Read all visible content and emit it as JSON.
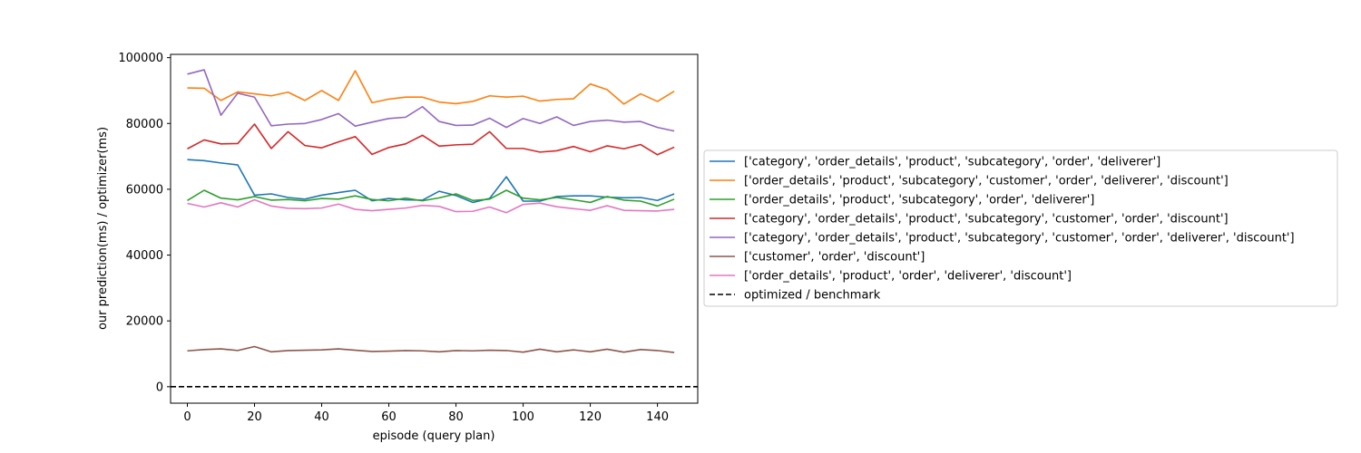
{
  "chart_data": {
    "type": "line",
    "title": "",
    "xlabel": "episode (query plan)",
    "ylabel": "our prediction(ms) / optimizer(ms)",
    "xlim": [
      -5,
      152
    ],
    "ylim": [
      -5000,
      101000
    ],
    "xticks": [
      "0",
      "20",
      "40",
      "60",
      "80",
      "100",
      "120",
      "140"
    ],
    "yticks": [
      "0",
      "20000",
      "40000",
      "60000",
      "80000",
      "100000"
    ],
    "grid": false,
    "legend_position": "right",
    "x": [
      0,
      5,
      10,
      15,
      20,
      25,
      30,
      35,
      40,
      45,
      50,
      55,
      60,
      65,
      70,
      75,
      80,
      85,
      90,
      95,
      100,
      105,
      110,
      115,
      120,
      125,
      130,
      135,
      140,
      145
    ],
    "series": [
      {
        "name": "['category', 'order_details', 'product', 'subcategory', 'order', 'deliverer']",
        "color": "#1f77b4",
        "values": [
          69000,
          68700,
          68000,
          67400,
          58200,
          58600,
          57500,
          57000,
          58200,
          59000,
          59700,
          56500,
          57200,
          56800,
          56700,
          59400,
          58100,
          56000,
          57200,
          63800,
          56400,
          56400,
          57800,
          58000,
          58000,
          57600,
          57400,
          57500,
          56600,
          58600
        ]
      },
      {
        "name": "['order_details', 'product', 'subcategory', 'customer', 'order', 'deliverer', 'discount']",
        "color": "#ff7f0e",
        "values": [
          90800,
          90700,
          87000,
          89600,
          89000,
          88400,
          89500,
          87000,
          90000,
          87000,
          96000,
          86300,
          87400,
          88000,
          88000,
          86500,
          86000,
          86700,
          88400,
          88000,
          88300,
          86800,
          87300,
          87500,
          92000,
          90300,
          85900,
          89000,
          86700,
          89800
        ]
      },
      {
        "name": "['order_details', 'product', 'subcategory', 'order', 'deliverer']",
        "color": "#2ca02c",
        "values": [
          56600,
          59700,
          57300,
          56800,
          57800,
          56700,
          56900,
          56500,
          57200,
          57000,
          58000,
          56900,
          56500,
          57300,
          56500,
          57400,
          58600,
          56600,
          57000,
          59700,
          57300,
          56800,
          57500,
          56800,
          56000,
          57800,
          56700,
          56400,
          54900,
          57000
        ]
      },
      {
        "name": "['category', 'order_details', 'product', 'subcategory', 'customer', 'order', 'discount']",
        "color": "#d62728",
        "values": [
          72300,
          75000,
          73800,
          73900,
          79800,
          72400,
          77500,
          73300,
          72600,
          74400,
          76000,
          70600,
          72700,
          73800,
          76400,
          73100,
          73500,
          73700,
          77500,
          72400,
          72400,
          71300,
          71700,
          73000,
          71400,
          73200,
          72300,
          73600,
          70500,
          72800
        ]
      },
      {
        "name": "['category', 'order_details', 'product', 'subcategory', 'customer', 'order', 'deliverer', 'discount']",
        "color": "#9467bd",
        "values": [
          95000,
          96300,
          82500,
          89200,
          88000,
          79300,
          79800,
          80000,
          81200,
          83000,
          79200,
          80400,
          81500,
          81900,
          85100,
          80600,
          79400,
          79500,
          81600,
          78800,
          81500,
          80000,
          82000,
          79400,
          80600,
          81000,
          80400,
          80600,
          78800,
          77700
        ]
      },
      {
        "name": "['customer', 'order', 'discount']",
        "color": "#8c564b",
        "values": [
          10900,
          11300,
          11500,
          11000,
          12200,
          10600,
          11000,
          11100,
          11200,
          11500,
          11100,
          10700,
          10800,
          11000,
          10900,
          10600,
          11000,
          10900,
          11100,
          11000,
          10500,
          11400,
          10600,
          11200,
          10600,
          11400,
          10500,
          11300,
          11000,
          10400
        ]
      },
      {
        "name": "['order_details', 'product', 'order', 'deliverer', 'discount']",
        "color": "#e377c2",
        "values": [
          55700,
          54600,
          55900,
          54600,
          56800,
          54900,
          54200,
          54100,
          54300,
          55500,
          53900,
          53500,
          53900,
          54300,
          55100,
          54800,
          53200,
          53300,
          54600,
          52900,
          55400,
          55800,
          54700,
          54100,
          53600,
          55000,
          53600,
          53500,
          53400,
          53900
        ]
      }
    ],
    "reference_line": {
      "name": "optimized / benchmark",
      "y": 0,
      "color": "#000000",
      "style": "dashed"
    }
  }
}
